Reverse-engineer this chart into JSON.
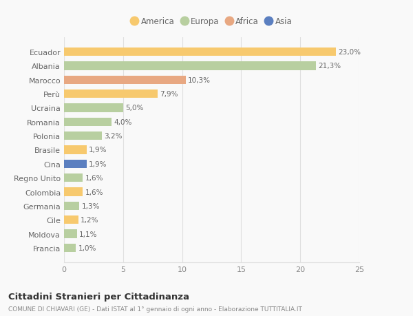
{
  "categories": [
    "Francia",
    "Moldova",
    "Cile",
    "Germania",
    "Colombia",
    "Regno Unito",
    "Cina",
    "Brasile",
    "Polonia",
    "Romania",
    "Ucraina",
    "Perù",
    "Marocco",
    "Albania",
    "Ecuador"
  ],
  "values": [
    1.0,
    1.1,
    1.2,
    1.3,
    1.6,
    1.6,
    1.9,
    1.9,
    3.2,
    4.0,
    5.0,
    7.9,
    10.3,
    21.3,
    23.0
  ],
  "labels": [
    "1,0%",
    "1,1%",
    "1,2%",
    "1,3%",
    "1,6%",
    "1,6%",
    "1,9%",
    "1,9%",
    "3,2%",
    "4,0%",
    "5,0%",
    "7,9%",
    "10,3%",
    "21,3%",
    "23,0%"
  ],
  "colors": [
    "#b8cfa0",
    "#b8cfa0",
    "#f7c96e",
    "#b8cfa0",
    "#f7c96e",
    "#b8cfa0",
    "#5b7fc0",
    "#f7c96e",
    "#b8cfa0",
    "#b8cfa0",
    "#b8cfa0",
    "#f7c96e",
    "#e8a882",
    "#b8cfa0",
    "#f7c96e"
  ],
  "legend": {
    "America": "#f7c96e",
    "Europa": "#b8cfa0",
    "Africa": "#e8a882",
    "Asia": "#5b7fc0"
  },
  "xlim": [
    0,
    25
  ],
  "xticks": [
    0,
    5,
    10,
    15,
    20,
    25
  ],
  "title": "Cittadini Stranieri per Cittadinanza",
  "subtitle": "COMUNE DI CHIAVARI (GE) - Dati ISTAT al 1° gennaio di ogni anno - Elaborazione TUTTITALIA.IT",
  "background_color": "#f9f9f9",
  "grid_color": "#e0e0e0"
}
